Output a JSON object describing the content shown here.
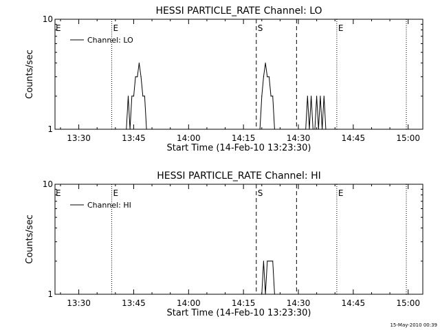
{
  "footer": {
    "timestamp": "15-May-2010 00:39"
  },
  "chart_data": [
    {
      "type": "line",
      "title": "HESSI PARTICLE_RATE Channel: LO",
      "xlabel": "Start Time (14-Feb-10 13:23:30)",
      "ylabel": "Counts/sec",
      "yscale": "log",
      "ylim": [
        1,
        10
      ],
      "xlim": [
        "13:23:30",
        "15:04:00"
      ],
      "x_ticks": [
        "13:30",
        "13:45",
        "14:00",
        "14:15",
        "14:30",
        "14:45",
        "15:00"
      ],
      "y_ticks": [
        "1",
        "10"
      ],
      "legend": {
        "entries": [
          "Channel: LO"
        ],
        "position": "top-left"
      },
      "event_lines": [
        {
          "time": "13:39:00",
          "style": "dotted",
          "label": "E"
        },
        {
          "time": "14:18:30",
          "style": "dashed",
          "label": "S"
        },
        {
          "time": "14:29:30",
          "style": "dashed",
          "label": ""
        },
        {
          "time": "14:40:30",
          "style": "dotted",
          "label": "E"
        },
        {
          "time": "14:59:30",
          "style": "dotted",
          "label": ""
        }
      ],
      "series": [
        {
          "name": "Channel: LO",
          "points": [
            [
              "13:43:00",
              1
            ],
            [
              "13:43:30",
              2
            ],
            [
              "13:44:00",
              1
            ],
            [
              "13:44:30",
              2
            ],
            [
              "13:45:00",
              2
            ],
            [
              "13:45:30",
              3
            ],
            [
              "13:46:00",
              3
            ],
            [
              "13:46:30",
              4
            ],
            [
              "13:47:00",
              3
            ],
            [
              "13:47:30",
              2
            ],
            [
              "13:48:00",
              2
            ],
            [
              "13:48:30",
              1
            ],
            [
              "14:19:30",
              1
            ],
            [
              "14:20:00",
              2
            ],
            [
              "14:20:30",
              3
            ],
            [
              "14:21:00",
              4
            ],
            [
              "14:21:30",
              3
            ],
            [
              "14:22:00",
              3
            ],
            [
              "14:22:30",
              2
            ],
            [
              "14:23:00",
              2
            ],
            [
              "14:23:30",
              1
            ],
            [
              "14:30:30",
              1
            ],
            [
              "14:31:00",
              1
            ],
            [
              "14:31:30",
              1
            ],
            [
              "14:32:00",
              1
            ],
            [
              "14:32:30",
              2
            ],
            [
              "14:33:00",
              1
            ],
            [
              "14:33:30",
              2
            ],
            [
              "14:34:00",
              1
            ],
            [
              "14:34:30",
              1
            ],
            [
              "14:35:00",
              2
            ],
            [
              "14:35:30",
              1
            ],
            [
              "14:36:00",
              2
            ],
            [
              "14:36:30",
              1
            ],
            [
              "14:37:00",
              2
            ],
            [
              "14:37:30",
              1
            ]
          ]
        }
      ]
    },
    {
      "type": "line",
      "title": "HESSI PARTICLE_RATE Channel: HI",
      "xlabel": "Start Time (14-Feb-10 13:23:30)",
      "ylabel": "Counts/sec",
      "yscale": "log",
      "ylim": [
        1,
        10
      ],
      "xlim": [
        "13:23:30",
        "15:04:00"
      ],
      "x_ticks": [
        "13:30",
        "13:45",
        "14:00",
        "14:15",
        "14:30",
        "14:45",
        "15:00"
      ],
      "y_ticks": [
        "1",
        "10"
      ],
      "legend": {
        "entries": [
          "Channel: HI"
        ],
        "position": "top-left"
      },
      "event_lines": [
        {
          "time": "13:39:00",
          "style": "dotted",
          "label": "E"
        },
        {
          "time": "14:18:30",
          "style": "dashed",
          "label": "S"
        },
        {
          "time": "14:29:30",
          "style": "dashed",
          "label": ""
        },
        {
          "time": "14:40:30",
          "style": "dotted",
          "label": "E"
        },
        {
          "time": "14:59:30",
          "style": "dotted",
          "label": ""
        }
      ],
      "series": [
        {
          "name": "Channel: HI",
          "points": [
            [
              "14:20:00",
              1
            ],
            [
              "14:20:30",
              2
            ],
            [
              "14:21:00",
              1
            ],
            [
              "14:21:30",
              2
            ],
            [
              "14:22:00",
              2
            ],
            [
              "14:22:30",
              2
            ],
            [
              "14:23:00",
              2
            ],
            [
              "14:23:30",
              1
            ]
          ]
        }
      ]
    }
  ]
}
